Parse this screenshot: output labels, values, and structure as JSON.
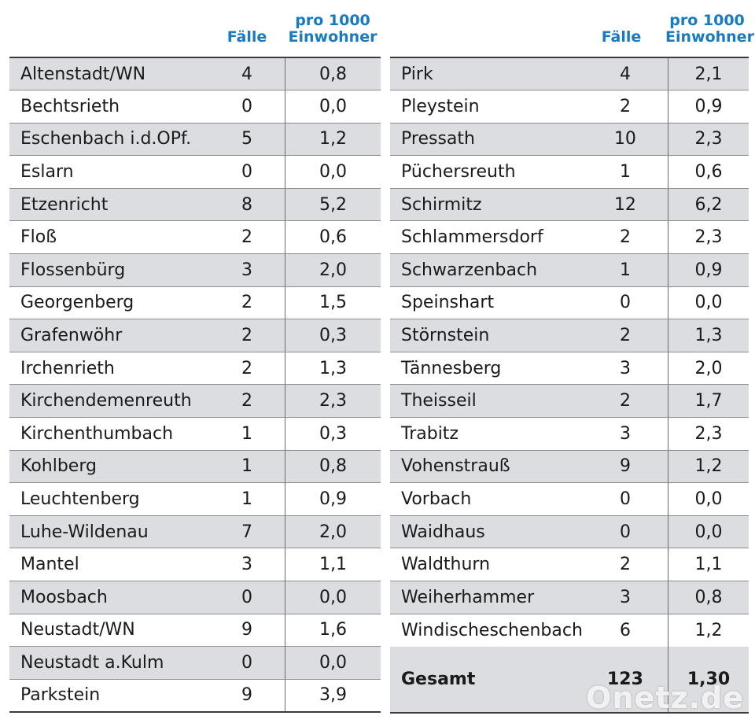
{
  "headers": {
    "faelle": "Fälle",
    "rate_line1": "pro 1000",
    "rate_line2": "Einwohner"
  },
  "left_rows": [
    {
      "name": "Altenstadt/WN",
      "faelle": "4",
      "rate": "0,8"
    },
    {
      "name": "Bechtsrieth",
      "faelle": "0",
      "rate": "0,0"
    },
    {
      "name": "Eschenbach i.d.OPf.",
      "faelle": "5",
      "rate": "1,2"
    },
    {
      "name": "Eslarn",
      "faelle": "0",
      "rate": "0,0"
    },
    {
      "name": "Etzenricht",
      "faelle": "8",
      "rate": "5,2"
    },
    {
      "name": "Floß",
      "faelle": "2",
      "rate": "0,6"
    },
    {
      "name": "Flossenbürg",
      "faelle": "3",
      "rate": "2,0"
    },
    {
      "name": "Georgenberg",
      "faelle": "2",
      "rate": "1,5"
    },
    {
      "name": "Grafenwöhr",
      "faelle": "2",
      "rate": "0,3"
    },
    {
      "name": "Irchenrieth",
      "faelle": "2",
      "rate": "1,3"
    },
    {
      "name": "Kirchendemenreuth",
      "faelle": "2",
      "rate": "2,3"
    },
    {
      "name": "Kirchenthumbach",
      "faelle": "1",
      "rate": "0,3"
    },
    {
      "name": "Kohlberg",
      "faelle": "1",
      "rate": "0,8"
    },
    {
      "name": "Leuchtenberg",
      "faelle": "1",
      "rate": "0,9"
    },
    {
      "name": "Luhe-Wildenau",
      "faelle": "7",
      "rate": "2,0"
    },
    {
      "name": "Mantel",
      "faelle": "3",
      "rate": "1,1"
    },
    {
      "name": "Moosbach",
      "faelle": "0",
      "rate": "0,0"
    },
    {
      "name": "Neustadt/WN",
      "faelle": "9",
      "rate": "1,6"
    },
    {
      "name": "Neustadt a.Kulm",
      "faelle": "0",
      "rate": "0,0"
    },
    {
      "name": "Parkstein",
      "faelle": "9",
      "rate": "3,9"
    }
  ],
  "right_rows": [
    {
      "name": "Pirk",
      "faelle": "4",
      "rate": "2,1"
    },
    {
      "name": "Pleystein",
      "faelle": "2",
      "rate": "0,9"
    },
    {
      "name": "Pressath",
      "faelle": "10",
      "rate": "2,3"
    },
    {
      "name": "Püchersreuth",
      "faelle": "1",
      "rate": "0,6"
    },
    {
      "name": "Schirmitz",
      "faelle": "12",
      "rate": "6,2"
    },
    {
      "name": "Schlammersdorf",
      "faelle": "2",
      "rate": "2,3"
    },
    {
      "name": "Schwarzenbach",
      "faelle": "1",
      "rate": "0,9"
    },
    {
      "name": "Speinshart",
      "faelle": "0",
      "rate": "0,0"
    },
    {
      "name": "Störnstein",
      "faelle": "2",
      "rate": "1,3"
    },
    {
      "name": "Tännesberg",
      "faelle": "3",
      "rate": "2,0"
    },
    {
      "name": "Theisseil",
      "faelle": "2",
      "rate": "1,7"
    },
    {
      "name": "Trabitz",
      "faelle": "3",
      "rate": "2,3"
    },
    {
      "name": "Vohenstrauß",
      "faelle": "9",
      "rate": "1,2"
    },
    {
      "name": "Vorbach",
      "faelle": "0",
      "rate": "0,0"
    },
    {
      "name": "Waidhaus",
      "faelle": "0",
      "rate": "0,0"
    },
    {
      "name": "Waldthurn",
      "faelle": "2",
      "rate": "1,1"
    },
    {
      "name": "Weiherhammer",
      "faelle": "3",
      "rate": "0,8"
    },
    {
      "name": "Windischeschenbach",
      "faelle": "6",
      "rate": "1,2"
    }
  ],
  "total": {
    "label": "Gesamt",
    "faelle": "123",
    "rate": "1,30"
  },
  "watermark": "Onetz.de"
}
